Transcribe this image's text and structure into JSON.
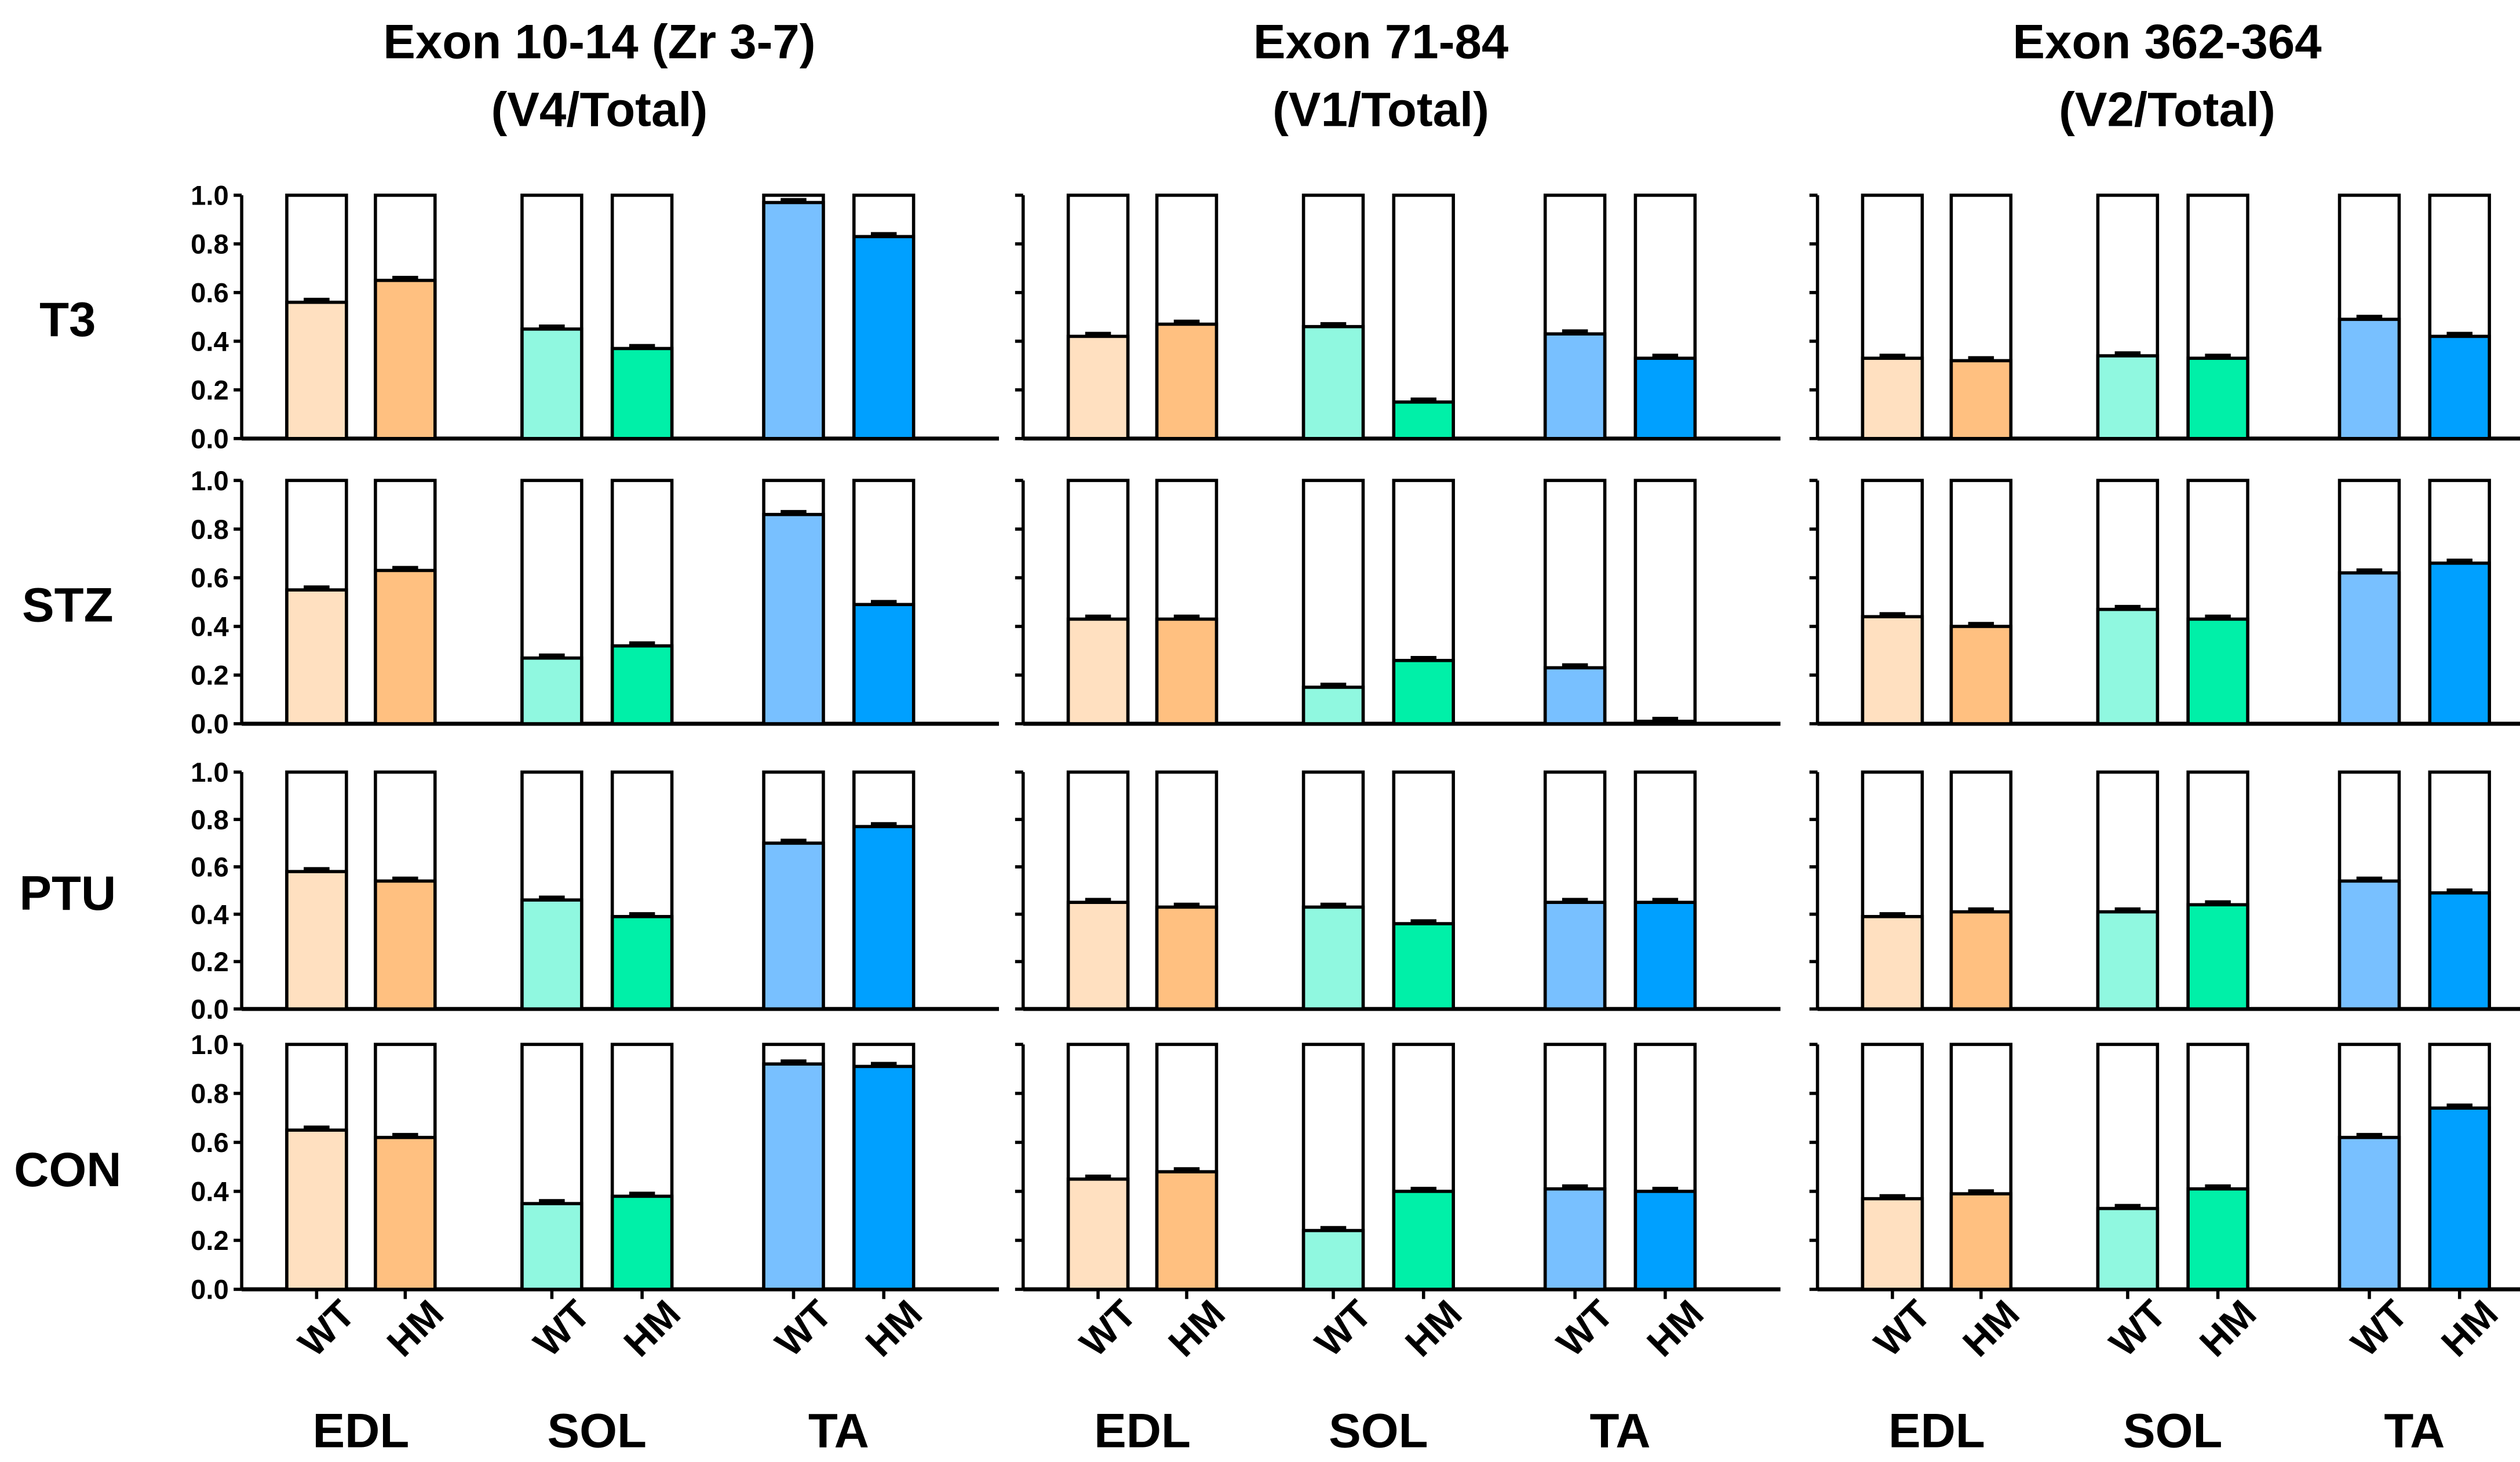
{
  "chart_data": {
    "type": "bar",
    "stacked_fraction": true,
    "ylim": [
      0,
      1.0
    ],
    "yticks": [
      "0.0",
      "0.2",
      "0.4",
      "0.6",
      "0.8",
      "1.0"
    ],
    "bar_labels": [
      "WT",
      "HM",
      "WT",
      "HM",
      "WT",
      "HM"
    ],
    "groups": [
      "EDL",
      "SOL",
      "TA"
    ],
    "colors": [
      "#ffe0c0",
      "#ffc080",
      "#90f8e0",
      "#00f0a8",
      "#78c0ff",
      "#00a0ff"
    ],
    "rows": [
      "T3",
      "STZ",
      "PTU",
      "CON"
    ],
    "columns": [
      {
        "title_line1": "Exon 10-14 (Zr 3-7)",
        "title_line2": "(V4/Total)",
        "values": [
          [
            0.56,
            0.65,
            0.45,
            0.37,
            0.97,
            0.83
          ],
          [
            0.55,
            0.63,
            0.27,
            0.32,
            0.86,
            0.49
          ],
          [
            0.58,
            0.54,
            0.46,
            0.39,
            0.7,
            0.77
          ],
          [
            0.65,
            0.62,
            0.35,
            0.38,
            0.92,
            0.91
          ]
        ]
      },
      {
        "title_line1": "Exon 71-84",
        "title_line2": "(V1/Total)",
        "values": [
          [
            0.42,
            0.47,
            0.46,
            0.15,
            0.43,
            0.33
          ],
          [
            0.43,
            0.43,
            0.15,
            0.26,
            0.23,
            0.01
          ],
          [
            0.45,
            0.43,
            0.43,
            0.36,
            0.45,
            0.45
          ],
          [
            0.45,
            0.48,
            0.24,
            0.4,
            0.41,
            0.4
          ]
        ]
      },
      {
        "title_line1": "Exon 362-364",
        "title_line2": "(V2/Total)",
        "values": [
          [
            0.33,
            0.32,
            0.34,
            0.33,
            0.49,
            0.42
          ],
          [
            0.44,
            0.4,
            0.47,
            0.43,
            0.62,
            0.66
          ],
          [
            0.39,
            0.41,
            0.41,
            0.44,
            0.54,
            0.49
          ],
          [
            0.37,
            0.39,
            0.33,
            0.41,
            0.62,
            0.74
          ]
        ]
      }
    ],
    "error": 0.012
  }
}
